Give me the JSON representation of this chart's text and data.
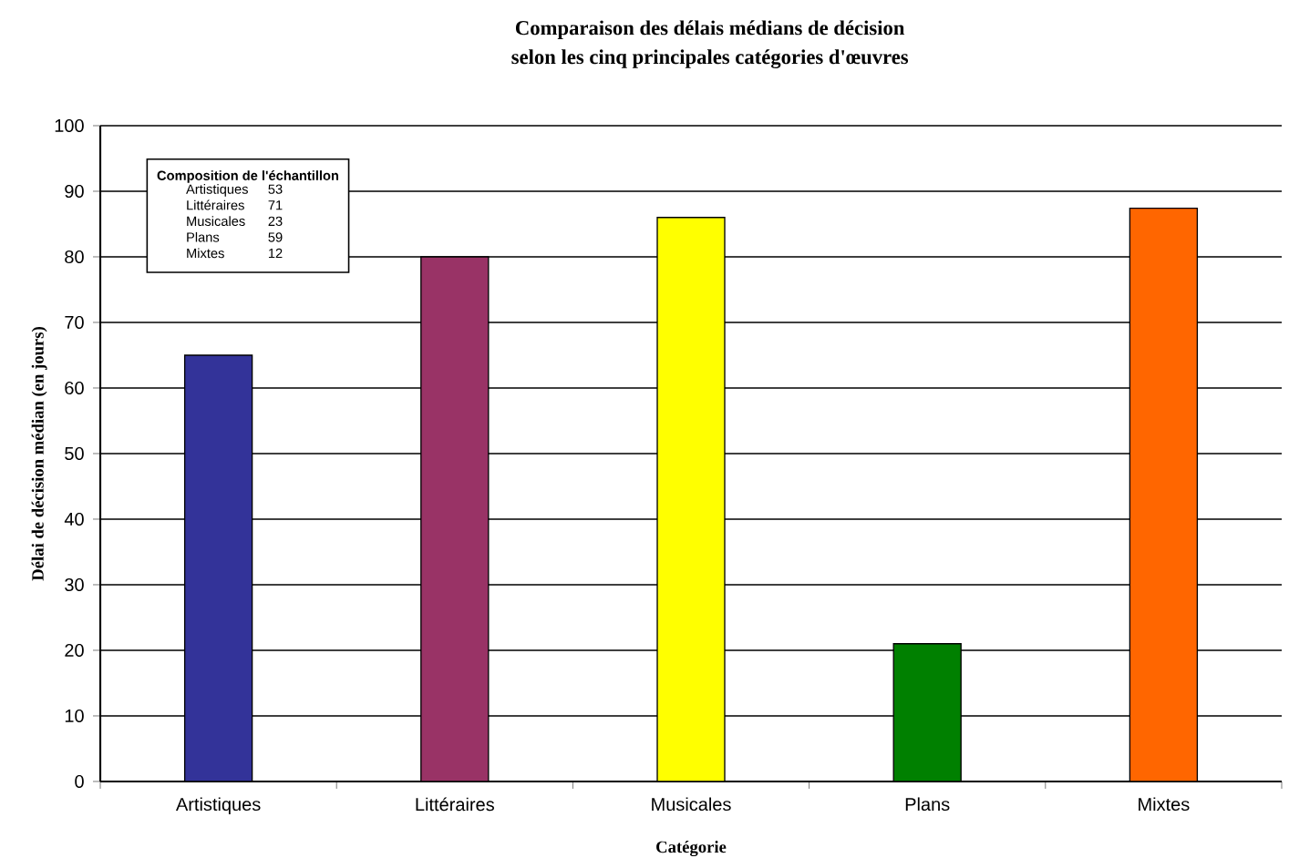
{
  "chart_data": {
    "type": "bar",
    "title": "Comparaison des délais médians de décision",
    "subtitle": "selon les cinq principales catégories d'œuvres",
    "xlabel": "Catégorie",
    "ylabel": "Délai de décision médian (en jours)",
    "categories": [
      "Artistiques",
      "Littéraires",
      "Musicales",
      "Plans",
      "Mixtes"
    ],
    "values": [
      65,
      80,
      86,
      21,
      87.4
    ],
    "colors": [
      "#333399",
      "#993366",
      "#ffff00",
      "#008000",
      "#ff6600"
    ],
    "ylim": [
      0,
      100
    ],
    "yticks": [
      0,
      10,
      20,
      30,
      40,
      50,
      60,
      70,
      80,
      90,
      100
    ],
    "grid": "y",
    "annotations": [
      "Composition de l'échantillon",
      "Artistiques",
      "53",
      "Littéraires",
      "71",
      "Musicales",
      "23",
      "Plans",
      "59",
      "Mixtes",
      "12"
    ]
  }
}
